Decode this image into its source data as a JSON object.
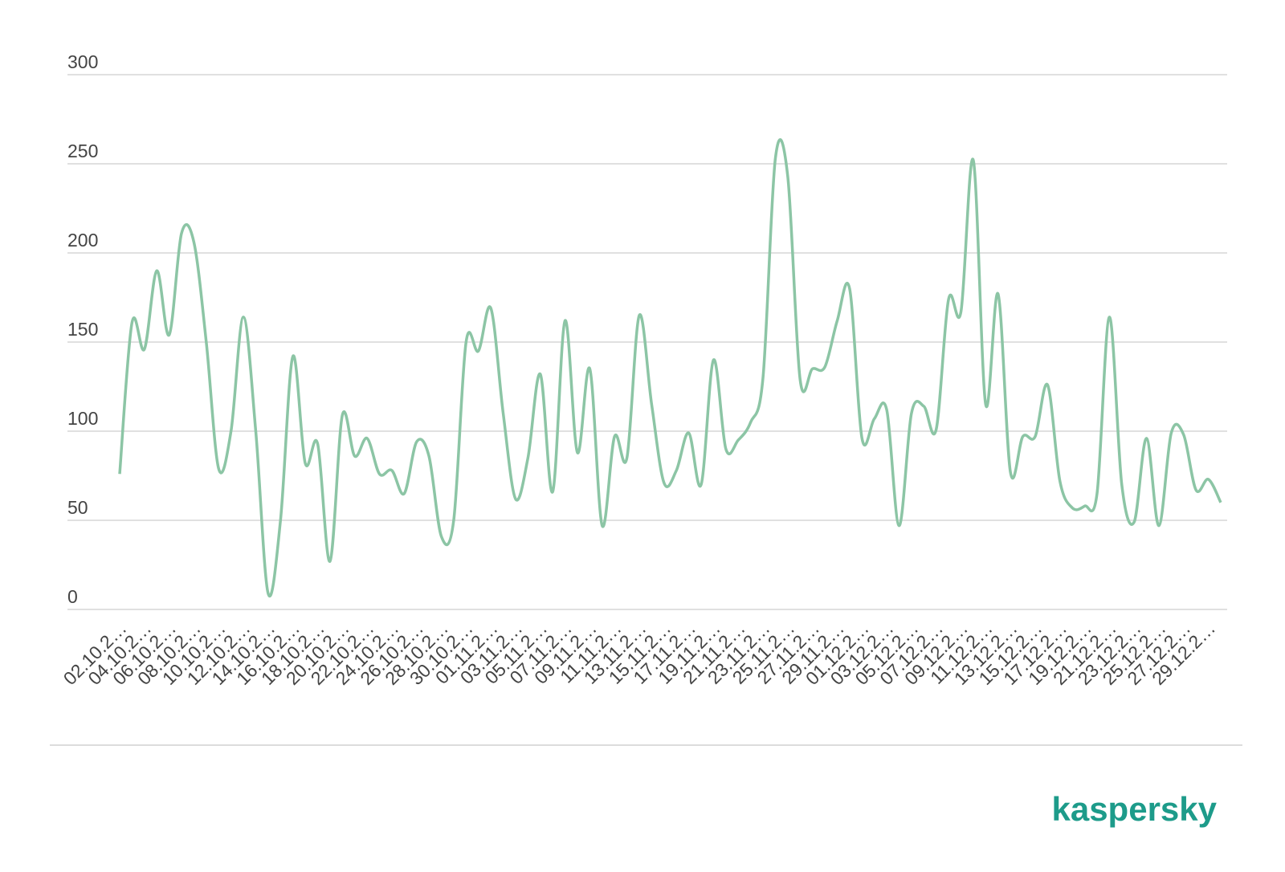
{
  "chart_data": {
    "type": "line",
    "categories": [
      "02.10.2…",
      null,
      "04.10.2…",
      null,
      "06.10.2…",
      null,
      "08.10.2…",
      null,
      "10.10.2…",
      null,
      "12.10.2…",
      null,
      "14.10.2…",
      null,
      "16.10.2…",
      null,
      "18.10.2…",
      null,
      "20.10.2…",
      null,
      "22.10.2…",
      null,
      "24.10.2…",
      null,
      "26.10.2…",
      null,
      "28.10.2…",
      null,
      "30.10.2…",
      null,
      "01.11.2…",
      null,
      "03.11.2…",
      null,
      "05.11.2…",
      null,
      "07.11.2…",
      null,
      "09.11.2…",
      null,
      "11.11.2…",
      null,
      "13.11.2…",
      null,
      "15.11.2…",
      null,
      "17.11.2…",
      null,
      "19.11.2…",
      null,
      "21.11.2…",
      null,
      "23.11.2…",
      null,
      "25.11.2…",
      null,
      "27.11.2…",
      null,
      "29.11.2…",
      null,
      "01.12.2…",
      null,
      "03.12.2…",
      null,
      "05.12.2…",
      null,
      "07.12.2…",
      null,
      "09.12.2…",
      null,
      "11.12.2…",
      null,
      "13.12.2…",
      null,
      "15.12.2…",
      null,
      "17.12.2…",
      null,
      "19.12.2…",
      null,
      "21.12.2…",
      null,
      "23.12.2…",
      null,
      "25.12.2…",
      null,
      "27.12.2…",
      null,
      "29.12.2…",
      null
    ],
    "values": [
      76,
      161,
      146,
      190,
      154,
      211,
      206,
      150,
      79,
      100,
      164,
      100,
      9,
      50,
      142,
      82,
      93,
      27,
      109,
      86,
      96,
      76,
      78,
      65,
      94,
      86,
      41,
      50,
      150,
      145,
      169,
      110,
      62,
      85,
      132,
      66,
      162,
      88,
      135,
      47,
      97,
      85,
      165,
      115,
      71,
      78,
      99,
      70,
      140,
      90,
      95,
      105,
      130,
      253,
      243,
      129,
      135,
      136,
      162,
      180,
      96,
      107,
      112,
      47,
      110,
      114,
      101,
      174,
      167,
      252,
      115,
      177,
      77,
      97,
      97,
      126,
      72,
      57,
      58,
      65,
      164,
      70,
      49,
      96,
      47,
      99,
      98,
      67,
      73,
      60
    ],
    "color": "#8cc5a5",
    "ylim": [
      0,
      300
    ],
    "yticks": [
      0,
      50,
      100,
      150,
      200,
      250,
      300
    ],
    "grid": true
  },
  "brand": "kaspersky"
}
